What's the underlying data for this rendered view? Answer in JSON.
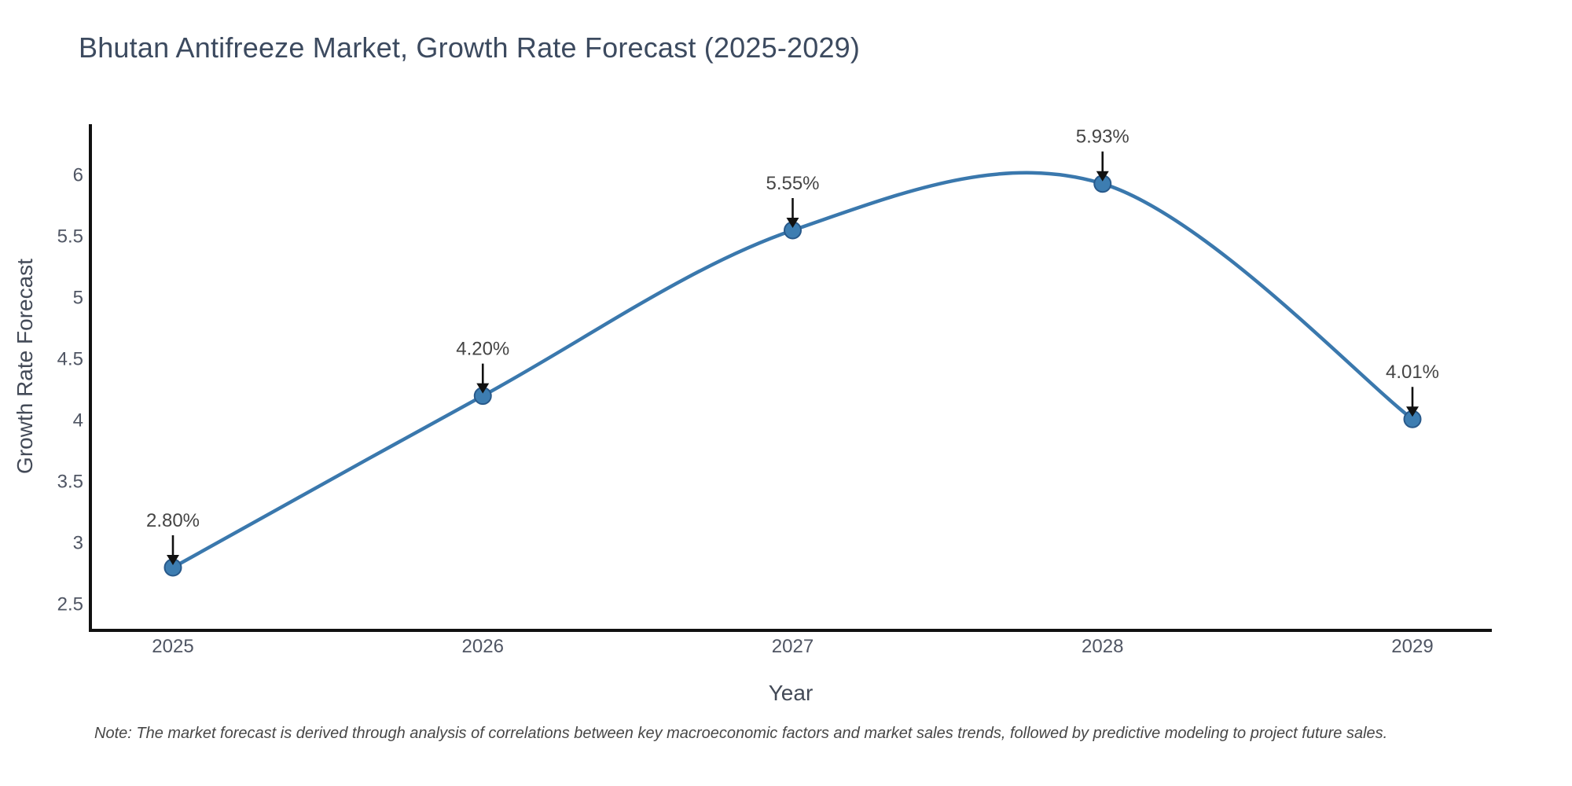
{
  "note": "Note: The market forecast is derived through analysis of correlations between key macroeconomic factors and market sales trends, followed by predictive modeling to project future sales.",
  "chart_data": {
    "type": "line",
    "title": "Bhutan Antifreeze Market, Growth Rate Forecast (2025-2029)",
    "xlabel": "Year",
    "ylabel": "Growth Rate Forecast",
    "categories": [
      "2025",
      "2026",
      "2027",
      "2028",
      "2029"
    ],
    "x": [
      2025,
      2026,
      2027,
      2028,
      2029
    ],
    "values": [
      2.8,
      4.2,
      5.55,
      5.93,
      4.01
    ],
    "point_labels": [
      "2.80%",
      "4.20%",
      "5.55%",
      "5.93%",
      "4.01%"
    ],
    "yticks": [
      2.5,
      3,
      3.5,
      4,
      4.5,
      5,
      5.5,
      6
    ],
    "ylim": [
      2.29,
      6.4
    ],
    "line_shape": "spline",
    "grid": false,
    "legend": false,
    "markers": true,
    "annotations": "black-arrow-down-to-point",
    "colors": {
      "line": "#3a78ad",
      "marker_fill": "#3d7db1",
      "marker_edge": "#28598a",
      "arrow": "#111111",
      "spine": "#111111",
      "title_text": "#3c4a5f",
      "tick_text": "#4f5563",
      "axis_label_text": "#434a57",
      "annotation_text": "#454545",
      "note_text": "#474747"
    }
  }
}
